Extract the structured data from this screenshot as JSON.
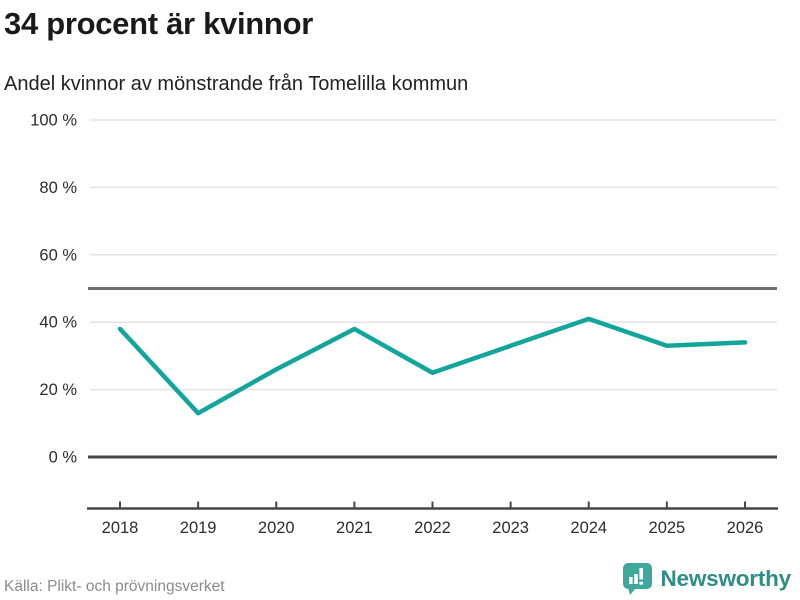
{
  "header": {
    "title": "34 procent är kvinnor",
    "subtitle": "Andel kvinnor av mönstrande från Tomelilla kommun"
  },
  "chart_data": {
    "type": "line",
    "title": "34 procent är kvinnor",
    "subtitle": "Andel kvinnor av mönstrande från Tomelilla kommun",
    "x": [
      "2018",
      "2019",
      "2020",
      "2021",
      "2022",
      "2023",
      "2024",
      "2025",
      "2026"
    ],
    "series": [
      {
        "name": "Andel kvinnor av mönstrande (%)",
        "values": [
          38,
          13,
          26,
          38,
          25,
          33,
          41,
          33,
          34
        ]
      }
    ],
    "ylim": [
      0,
      100
    ],
    "y_ticks": [
      100,
      80,
      60,
      40,
      20,
      0
    ],
    "y_tick_suffix": " %",
    "reference_line": 50,
    "grid": "horizontal",
    "legend": "none"
  },
  "footer": {
    "source": "Källa: Plikt- och prövningsverket",
    "brand": "Newsworthy"
  },
  "colors": {
    "line": "#11a59b",
    "grid_light": "#e3e3e3",
    "grid_reference": "#6f6f6f",
    "zero_line": "#464646",
    "axis": "#464646",
    "tick_text": "#2d2d2d",
    "title_text": "#1a1a1a",
    "muted_text": "#8b8b8b",
    "brand_teal": "#2e8d85",
    "brand_icon": "#3ea89c"
  }
}
